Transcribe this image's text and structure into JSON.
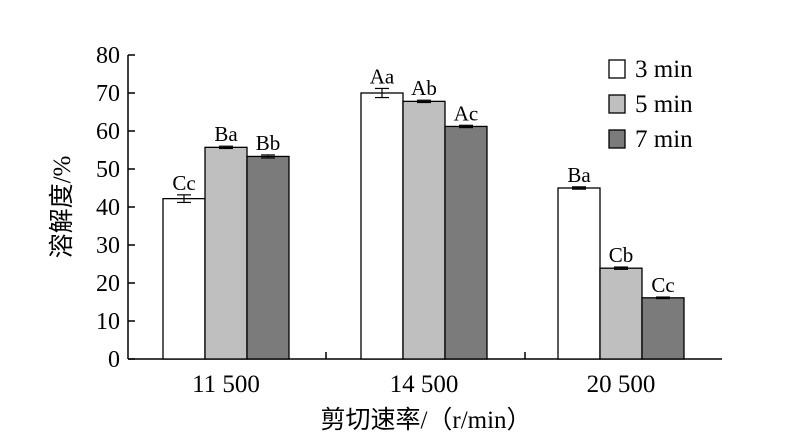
{
  "chart_data": {
    "type": "bar",
    "title": "",
    "xlabel": "剪切速率/（r/min）",
    "ylabel": "溶解度/%",
    "ylim": [
      0,
      80
    ],
    "yticks": [
      0,
      10,
      20,
      30,
      40,
      50,
      60,
      70,
      80
    ],
    "categories": [
      "11 500",
      "14 500",
      "20 500"
    ],
    "legend_position": "top-right",
    "grid": false,
    "series": [
      {
        "name": "3 min",
        "color": "#ffffff",
        "values": [
          42.2,
          70.0,
          45.0
        ],
        "errors": [
          1.0,
          1.2,
          0.3
        ],
        "labels": [
          "Cc",
          "Aa",
          "Ba"
        ]
      },
      {
        "name": "5 min",
        "color": "#bfbfbf",
        "values": [
          55.7,
          67.8,
          23.9
        ],
        "errors": [
          0.3,
          0.3,
          0.3
        ],
        "labels": [
          "Ba",
          "Ab",
          "Cb"
        ]
      },
      {
        "name": "7 min",
        "color": "#7b7b7b",
        "values": [
          53.3,
          61.2,
          16.1
        ],
        "errors": [
          0.4,
          0.3,
          0.2
        ],
        "labels": [
          "Bb",
          "Ac",
          "Cc"
        ]
      }
    ]
  }
}
